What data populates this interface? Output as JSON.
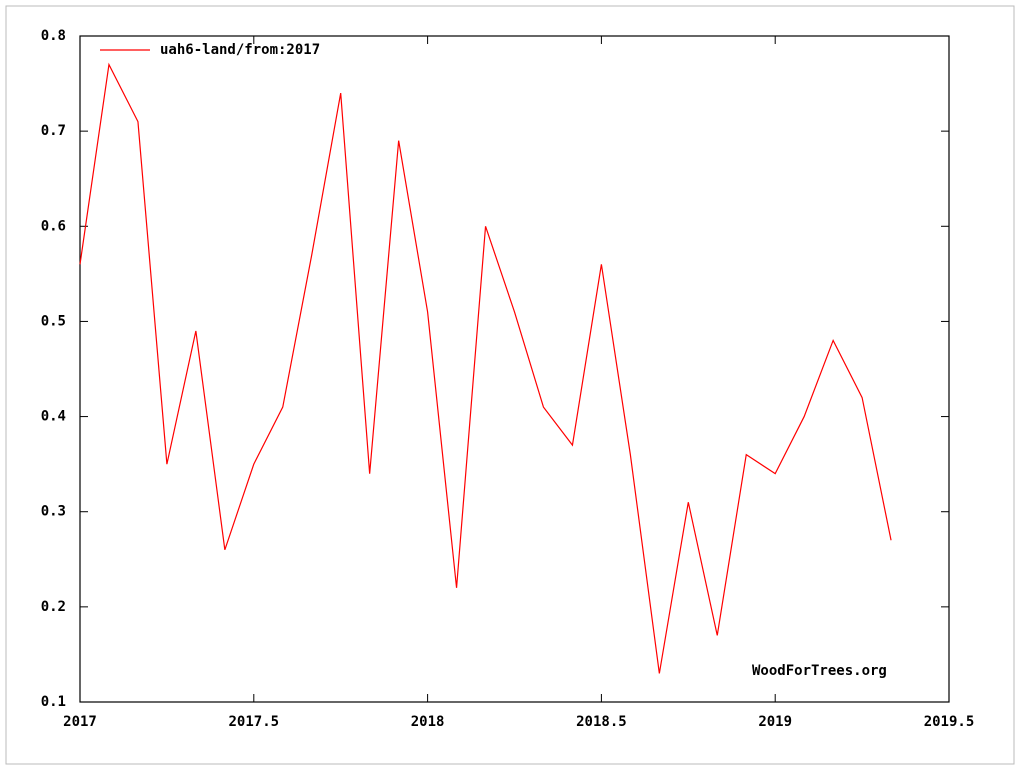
{
  "chart_data": {
    "type": "line",
    "x": [
      2017,
      2017.0833,
      2017.1667,
      2017.25,
      2017.3333,
      2017.4167,
      2017.5,
      2017.5833,
      2017.6667,
      2017.75,
      2017.8333,
      2017.9167,
      2018,
      2018.0833,
      2018.1667,
      2018.25,
      2018.3333,
      2018.4167,
      2018.5,
      2018.5833,
      2018.6667,
      2018.75,
      2018.8333,
      2018.9167,
      2019,
      2019.0833,
      2019.1667,
      2019.25,
      2019.3333
    ],
    "series": [
      {
        "name": "uah6-land/from:2017",
        "color": "#ff0000",
        "values": [
          0.56,
          0.77,
          0.71,
          0.35,
          0.49,
          0.26,
          0.35,
          0.41,
          0.57,
          0.74,
          0.34,
          0.69,
          0.51,
          0.22,
          0.6,
          0.51,
          0.41,
          0.37,
          0.56,
          0.36,
          0.13,
          0.31,
          0.17,
          0.36,
          0.34,
          0.4,
          0.48,
          0.42,
          0.27
        ]
      }
    ],
    "xlim": [
      2017,
      2019.5
    ],
    "xticks": [
      2017,
      2017.5,
      2018,
      2018.5,
      2019,
      2019.5
    ],
    "ylim": [
      0.1,
      0.8
    ],
    "yticks": [
      0.1,
      0.2,
      0.3,
      0.4,
      0.5,
      0.6,
      0.7,
      0.8
    ],
    "grid": false,
    "legend": "top-left",
    "annotation": "WoodForTrees.org"
  }
}
